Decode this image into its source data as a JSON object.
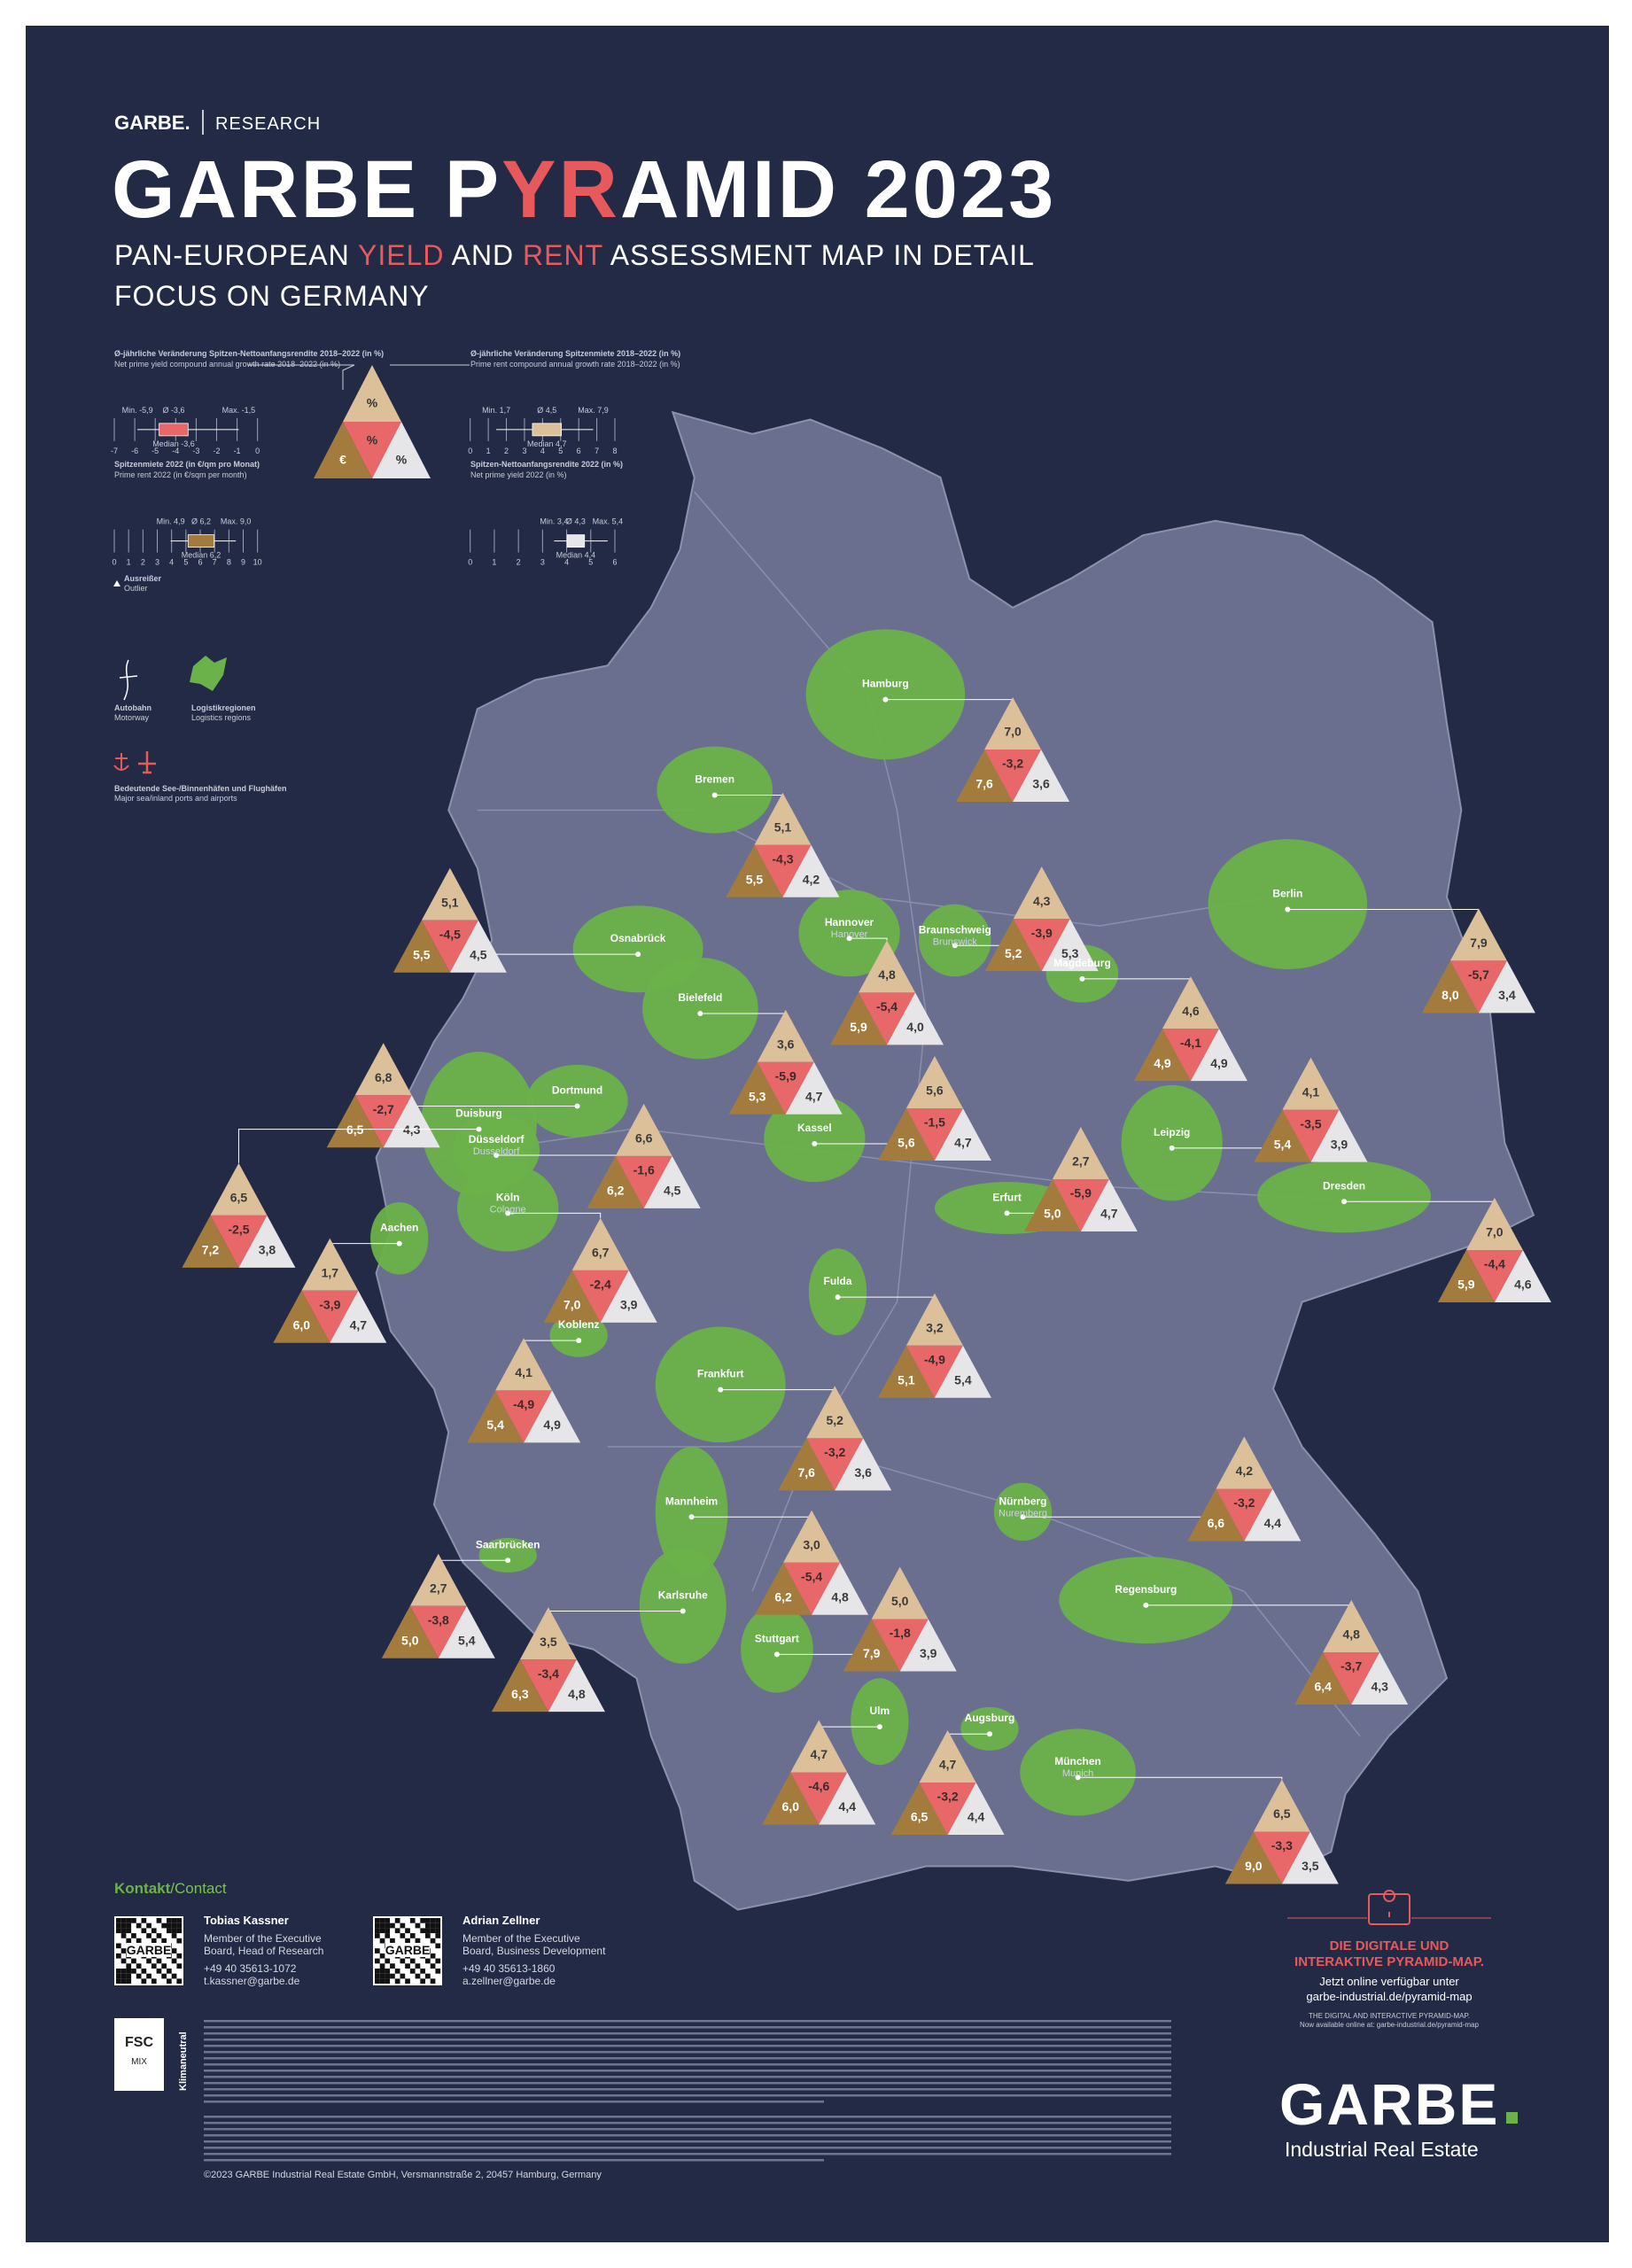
{
  "header": {
    "brand": "GARBE.",
    "section": "RESEARCH",
    "title": [
      "GARBE P",
      "YR",
      "AMID 2023"
    ],
    "subtitle": [
      "PAN-EUROPEAN ",
      "YIELD",
      " AND ",
      "RENT",
      " ASSESSMENT MAP IN DETAIL"
    ],
    "subtitle2": "FOCUS ON GERMANY"
  },
  "legend": {
    "panels": [
      {
        "title": "Ø-jährliche Veränderung Spitzen-Nettoanfangsrendite 2018–2022 (in %)",
        "subtitle": "Net prime yield compound annual growth rate 2018–2022 (in %)",
        "min": "Min. -5,9",
        "avg": "Ø -3,6",
        "max": "Max. -1,5",
        "median": "Median -3,6",
        "ticks": [
          "-7",
          "-6",
          "-5",
          "-4",
          "-3",
          "-2",
          "-1",
          "0"
        ]
      },
      {
        "title": "Ø-jährliche Veränderung Spitzenmiete 2018–2022 (in %)",
        "subtitle": "Prime rent compound annual growth rate 2018–2022 (in %)",
        "min": "Min. 1,7",
        "avg": "Ø 4,5",
        "max": "Max. 7,9",
        "median": "Median 4,7",
        "ticks": [
          "0",
          "1",
          "2",
          "3",
          "4",
          "5",
          "6",
          "7",
          "8"
        ]
      },
      {
        "title": "Spitzenmiete 2022 (in €/qm pro Monat)",
        "subtitle": "Prime rent 2022 (in €/sqm per month)",
        "min": "Min. 4,9",
        "avg": "Ø 6,2",
        "max": "Max. 9,0",
        "median": "Median 6,2",
        "ticks": [
          "0",
          "1",
          "2",
          "3",
          "4",
          "5",
          "6",
          "7",
          "8",
          "9",
          "10"
        ]
      },
      {
        "title": "Spitzen-Nettoanfangsrendite 2022 (in %)",
        "subtitle": "Net prime yield 2022 (in %)",
        "min": "Min. 3,4",
        "avg": "Ø 4,3",
        "max": "Max. 5,4",
        "median": "Median 4,4",
        "ticks": [
          "0",
          "1",
          "2",
          "3",
          "4",
          "5",
          "6"
        ]
      }
    ],
    "pyramid": {
      "top": "%",
      "mid": "%",
      "left": "€",
      "right": "%"
    },
    "outlier": "Ausreißer",
    "outlier_en": "Outlier",
    "motorway": "Autobahn",
    "motorway_en": "Motorway",
    "regions": "Logistikregionen",
    "regions_en": "Logistics regions",
    "ports": "Bedeutende See-/Binnenhäfen und Flughäfen",
    "ports_en": "Major sea/inland ports and airports"
  },
  "cities": [
    {
      "name": "Hamburg",
      "top": "7,0",
      "mid": "-3,2",
      "left": "7,6",
      "right": "3,6"
    },
    {
      "name": "Bremen",
      "top": "5,1",
      "mid": "-4,3",
      "left": "5,5",
      "right": "4,2"
    },
    {
      "name": "Osnabrück",
      "top": "5,1",
      "mid": "-4,5",
      "left": "5,5",
      "right": "4,5"
    },
    {
      "name": "Hannover",
      "alt": "Hanover",
      "top": "4,8",
      "mid": "-5,4",
      "left": "5,9",
      "right": "4,0"
    },
    {
      "name": "Braunschweig",
      "alt": "Brunswick",
      "top": "4,3",
      "mid": "-3,9",
      "left": "5,2",
      "right": "5,3"
    },
    {
      "name": "Berlin",
      "top": "7,9",
      "mid": "-5,7",
      "left": "8,0",
      "right": "3,4"
    },
    {
      "name": "Magdeburg",
      "top": "4,6",
      "mid": "-4,1",
      "left": "4,9",
      "right": "4,9"
    },
    {
      "name": "Bielefeld",
      "top": "3,6",
      "mid": "-5,9",
      "left": "5,3",
      "right": "4,7"
    },
    {
      "name": "Dortmund",
      "top": "6,8",
      "mid": "-2,7",
      "left": "6,5",
      "right": "4,3"
    },
    {
      "name": "Duisburg",
      "top": "6,5",
      "mid": "-2,5",
      "left": "7,2",
      "right": "3,8"
    },
    {
      "name": "Düsseldorf",
      "alt": "Dusseldorf",
      "top": "6,6",
      "mid": "-1,6",
      "left": "6,2",
      "right": "4,5"
    },
    {
      "name": "Kassel",
      "top": "5,6",
      "mid": "-1,5",
      "left": "5,6",
      "right": "4,7"
    },
    {
      "name": "Leipzig",
      "top": "4,1",
      "mid": "-3,5",
      "left": "5,4",
      "right": "3,9"
    },
    {
      "name": "Erfurt",
      "top": "2,7",
      "mid": "-5,9",
      "left": "5,0",
      "right": "4,7"
    },
    {
      "name": "Dresden",
      "top": "7,0",
      "mid": "-4,4",
      "left": "5,9",
      "right": "4,6"
    },
    {
      "name": "Köln",
      "alt": "Cologne",
      "top": "6,7",
      "mid": "-2,4",
      "left": "7,0",
      "right": "3,9"
    },
    {
      "name": "Aachen",
      "top": "1,7",
      "mid": "-3,9",
      "left": "6,0",
      "right": "4,7"
    },
    {
      "name": "Fulda",
      "top": "3,2",
      "mid": "-4,9",
      "left": "5,1",
      "right": "5,4"
    },
    {
      "name": "Koblenz",
      "top": "4,1",
      "mid": "-4,9",
      "left": "5,4",
      "right": "4,9"
    },
    {
      "name": "Frankfurt",
      "top": "5,2",
      "mid": "-3,2",
      "left": "7,6",
      "right": "3,6"
    },
    {
      "name": "Nürnberg",
      "alt": "Nuremberg",
      "top": "4,2",
      "mid": "-3,2",
      "left": "6,6",
      "right": "4,4"
    },
    {
      "name": "Mannheim",
      "top": "3,0",
      "mid": "-5,4",
      "left": "6,2",
      "right": "4,8"
    },
    {
      "name": "Saarbrücken",
      "top": "2,7",
      "mid": "-3,8",
      "left": "5,0",
      "right": "5,4"
    },
    {
      "name": "Karlsruhe",
      "top": "3,5",
      "mid": "-3,4",
      "left": "6,3",
      "right": "4,8"
    },
    {
      "name": "Stuttgart",
      "top": "5,0",
      "mid": "-1,8",
      "left": "7,9",
      "right": "3,9"
    },
    {
      "name": "Regensburg",
      "top": "4,8",
      "mid": "-3,7",
      "left": "6,4",
      "right": "4,3"
    },
    {
      "name": "Ulm",
      "top": "4,7",
      "mid": "-4,6",
      "left": "6,0",
      "right": "4,4"
    },
    {
      "name": "Augsburg",
      "top": "4,7",
      "mid": "-3,2",
      "left": "6,5",
      "right": "4,4"
    },
    {
      "name": "München",
      "alt": "Munich",
      "top": "6,5",
      "mid": "-3,3",
      "left": "9,0",
      "right": "3,5"
    }
  ],
  "contact": {
    "heading": "Kontakt",
    "heading_en": "/Contact",
    "people": [
      {
        "name": "Tobias Kassner",
        "role1": "Member of the Executive",
        "role2": "Board, Head of Research",
        "phone": "+49 40 35613-1072",
        "email": "t.kassner@garbe.de"
      },
      {
        "name": "Adrian Zellner",
        "role1": "Member of the Executive",
        "role2": "Board, Business Development",
        "phone": "+49 40 35613-1860",
        "email": "a.zellner@garbe.de"
      }
    ],
    "qr_label": "GARBE"
  },
  "digital": {
    "title1": "DIE DIGITALE UND",
    "title2": "INTERAKTIVE PYRAMID-MAP.",
    "line1": "Jetzt online verfügbar unter",
    "line2": "garbe-industrial.de/pyramid-map",
    "en1": "THE DIGITAL AND INTERACTIVE PYRAMID-MAP.",
    "en2": "Now available online at: garbe-industrial.de/pyramid-map"
  },
  "logos": {
    "fsc": "FSC",
    "fsc_mix": "MIX",
    "climate": "Klimaneutral"
  },
  "brand": {
    "name": "GARBE",
    "tagline": "Industrial Real Estate"
  },
  "footer": "©2023 GARBE Industrial Real Estate GmbH, Versmannstraße 2, 20457 Hamburg, Germany"
}
